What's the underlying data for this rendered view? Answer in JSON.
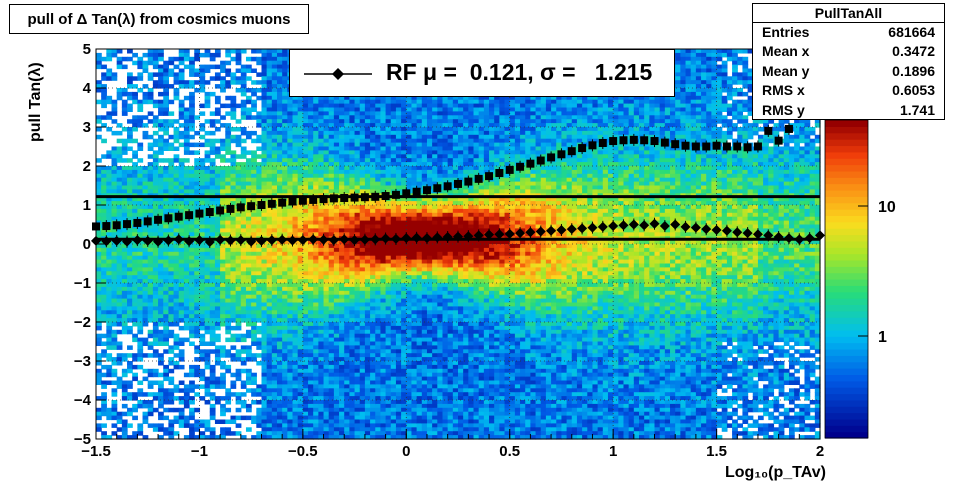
{
  "title": "pull of Δ Tan(λ) from cosmics muons",
  "stats": {
    "name": "PullTanAll",
    "rows": [
      {
        "label": "Entries",
        "value": "681664"
      },
      {
        "label": "Mean x",
        "value": "0.3472"
      },
      {
        "label": "Mean y",
        "value": "0.1896"
      },
      {
        "label": "RMS x",
        "value": "0.6053"
      },
      {
        "label": "RMS y",
        "value": "1.741"
      }
    ]
  },
  "legend": {
    "text": "RF μ =  0.121, σ =   1.215"
  },
  "colors": {
    "marker": "#000000",
    "palette": "rainbow (blue → cyan → green → yellow → orange → red)"
  },
  "chart_data": {
    "type": "heatmap",
    "xlabel": "Log₁₀(p_TAv)",
    "ylabel": "pull Tan(λ)",
    "xlim": [
      -1.5,
      2
    ],
    "ylim": [
      -5,
      5
    ],
    "x_ticks": [
      "−1.5",
      "−1",
      "−0.5",
      "0",
      "0.5",
      "1",
      "1.5",
      "2"
    ],
    "y_ticks": [
      "−5",
      "−4",
      "−3",
      "−2",
      "−1",
      "0",
      "1",
      "2",
      "3",
      "4",
      "5"
    ],
    "z_scale": "log",
    "z_ticks": [
      "1",
      "10"
    ],
    "hlines": [
      1.215,
      0.121
    ],
    "series": [
      {
        "x": [
          -1.5,
          -1.45,
          -1.4,
          -1.35,
          -1.3,
          -1.25,
          -1.2,
          -1.15,
          -1.1,
          -1.05,
          -1.0,
          -0.95,
          -0.9,
          -0.85,
          -0.8,
          -0.75,
          -0.7,
          -0.65,
          -0.6,
          -0.55,
          -0.5,
          -0.45,
          -0.4,
          -0.35,
          -0.3,
          -0.25,
          -0.2,
          -0.15,
          -0.1,
          -0.05,
          0.0,
          0.05,
          0.1,
          0.15,
          0.2,
          0.25,
          0.3,
          0.35,
          0.4,
          0.45,
          0.5,
          0.55,
          0.6,
          0.65,
          0.7,
          0.75,
          0.8,
          0.85,
          0.9,
          0.95,
          1.0,
          1.05,
          1.1,
          1.15,
          1.2,
          1.25,
          1.3,
          1.35,
          1.4,
          1.45,
          1.5,
          1.55,
          1.6,
          1.65,
          1.7,
          1.75,
          1.8,
          1.85,
          1.9,
          1.95,
          2.0
        ],
        "y": [
          0.45,
          0.46,
          0.48,
          0.51,
          0.54,
          0.58,
          0.62,
          0.66,
          0.7,
          0.74,
          0.78,
          0.82,
          0.86,
          0.9,
          0.94,
          0.97,
          1.0,
          1.03,
          1.06,
          1.09,
          1.11,
          1.13,
          1.15,
          1.17,
          1.18,
          1.19,
          1.2,
          1.21,
          1.23,
          1.26,
          1.3,
          1.34,
          1.38,
          1.43,
          1.48,
          1.54,
          1.6,
          1.67,
          1.74,
          1.82,
          1.9,
          1.98,
          2.06,
          2.14,
          2.22,
          2.3,
          2.38,
          2.46,
          2.53,
          2.59,
          2.64,
          2.66,
          2.67,
          2.66,
          2.64,
          2.6,
          2.56,
          2.52,
          2.5,
          2.5,
          2.52,
          2.5,
          2.5,
          2.48,
          2.5,
          2.9,
          2.65,
          2.95,
          3.35,
          3.55,
          3.6
        ]
      },
      {
        "x": [
          -1.5,
          -1.45,
          -1.4,
          -1.35,
          -1.3,
          -1.25,
          -1.2,
          -1.15,
          -1.1,
          -1.05,
          -1.0,
          -0.95,
          -0.9,
          -0.85,
          -0.8,
          -0.75,
          -0.7,
          -0.65,
          -0.6,
          -0.55,
          -0.5,
          -0.45,
          -0.4,
          -0.35,
          -0.3,
          -0.25,
          -0.2,
          -0.15,
          -0.1,
          -0.05,
          0.0,
          0.05,
          0.1,
          0.15,
          0.2,
          0.25,
          0.3,
          0.35,
          0.4,
          0.45,
          0.5,
          0.55,
          0.6,
          0.65,
          0.7,
          0.75,
          0.8,
          0.85,
          0.9,
          0.95,
          1.0,
          1.05,
          1.1,
          1.15,
          1.2,
          1.25,
          1.3,
          1.35,
          1.4,
          1.45,
          1.5,
          1.55,
          1.6,
          1.65,
          1.7,
          1.75,
          1.8,
          1.85,
          1.9,
          1.95,
          2.0
        ],
        "y": [
          0.08,
          0.07,
          0.08,
          0.06,
          0.1,
          0.08,
          0.06,
          0.09,
          0.12,
          0.07,
          0.1,
          0.05,
          0.11,
          0.09,
          0.1,
          0.06,
          0.08,
          0.1,
          0.11,
          0.09,
          0.1,
          0.12,
          0.11,
          0.1,
          0.12,
          0.1,
          0.11,
          0.12,
          0.14,
          0.13,
          0.15,
          0.16,
          0.15,
          0.17,
          0.18,
          0.19,
          0.2,
          0.22,
          0.24,
          0.25,
          0.26,
          0.28,
          0.3,
          0.32,
          0.34,
          0.36,
          0.38,
          0.4,
          0.42,
          0.44,
          0.46,
          0.48,
          0.5,
          0.48,
          0.52,
          0.46,
          0.5,
          0.44,
          0.42,
          0.38,
          0.36,
          0.34,
          0.3,
          0.28,
          0.25,
          0.22,
          0.18,
          0.15,
          0.12,
          0.15,
          0.22
        ]
      }
    ]
  }
}
